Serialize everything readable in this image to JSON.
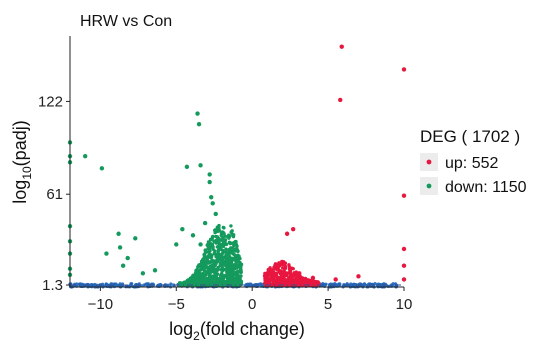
{
  "chart_data": {
    "type": "scatter",
    "title": "HRW vs Con",
    "xlabel_main": "log",
    "xlabel_sub": "2",
    "xlabel_rest": "(fold change)",
    "ylabel_main": "log",
    "ylabel_sub": "10",
    "ylabel_rest": "(padj)",
    "xlim": [
      -12,
      10
    ],
    "ylim": [
      0,
      165
    ],
    "x_ticks": [
      -10,
      -5,
      0,
      5,
      10
    ],
    "x_tick_labels": [
      "−10",
      "−5",
      "0",
      "5",
      "10"
    ],
    "y_ticks": [
      1.3,
      61,
      122
    ],
    "y_tick_labels": [
      "1.3",
      "61",
      "122"
    ],
    "threshold_y": 1.3,
    "legend": {
      "title": "DEG ( 1702 )",
      "position": "right",
      "items": [
        {
          "label": "up: 552",
          "color": "#e8173f"
        },
        {
          "label": "down: 1150",
          "color": "#149a5c"
        }
      ]
    },
    "colors": {
      "up": "#e8173f",
      "down": "#149a5c",
      "ns": "#2166b8",
      "threshold": "#3a4d8f"
    },
    "series": [
      {
        "name": "up: 552",
        "color": "#e8173f",
        "points": [
          [
            5.9,
            158
          ],
          [
            10,
            143
          ],
          [
            5.8,
            123
          ],
          [
            10,
            60
          ],
          [
            10,
            25
          ],
          [
            2.7,
            38
          ],
          [
            2.3,
            35
          ],
          [
            5.5,
            5
          ],
          [
            7,
            7
          ],
          [
            10,
            14
          ],
          [
            10,
            5
          ],
          [
            4,
            6
          ],
          [
            3.1,
            9
          ]
        ]
      },
      {
        "name": "down: 1150",
        "color": "#149a5c",
        "points": [
          [
            -3.6,
            114
          ],
          [
            -3.5,
            107
          ],
          [
            -11,
            86
          ],
          [
            -12,
            95
          ],
          [
            -12,
            86
          ],
          [
            -12,
            82
          ],
          [
            -3.4,
            80
          ],
          [
            -4.3,
            79
          ],
          [
            -9.9,
            78
          ],
          [
            -2.8,
            74
          ],
          [
            -2.8,
            69
          ],
          [
            -2.7,
            59
          ],
          [
            -2.6,
            55
          ],
          [
            -2.4,
            48
          ],
          [
            -4.6,
            38
          ],
          [
            -3.9,
            34
          ],
          [
            -5,
            28
          ],
          [
            -8.8,
            35
          ],
          [
            -7.7,
            32
          ],
          [
            -8.7,
            26
          ],
          [
            -8.2,
            19
          ],
          [
            -8.5,
            14
          ],
          [
            -9.6,
            22
          ],
          [
            -12,
            40
          ],
          [
            -12,
            30
          ],
          [
            -12,
            22
          ],
          [
            -12,
            12
          ],
          [
            -12,
            8
          ],
          [
            -3.1,
            42
          ],
          [
            -3.4,
            28
          ],
          [
            -6.4,
            11
          ],
          [
            -7.2,
            9
          ]
        ]
      }
    ]
  }
}
